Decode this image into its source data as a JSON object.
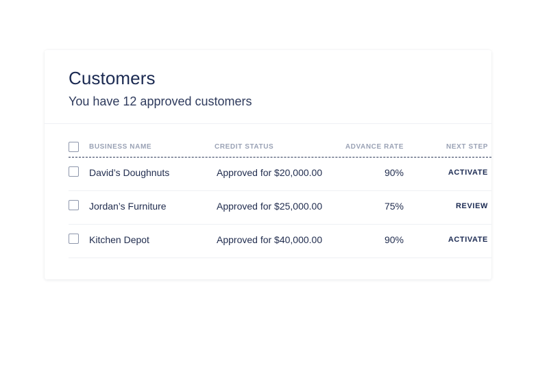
{
  "header": {
    "title": "Customers",
    "subtitle": "You have 12 approved customers"
  },
  "table": {
    "columns": [
      "BUSINESS NAME",
      "CREDIT STATUS",
      "ADVANCE RATE",
      "NEXT STEP"
    ],
    "rows": [
      {
        "name": "David’s Doughnuts",
        "status": "Approved for $20,000.00",
        "rate": "90%",
        "action": "ACTIVATE"
      },
      {
        "name": "Jordan’s Furniture",
        "status": "Approved for $25,000.00",
        "rate": "75%",
        "action": "REVIEW"
      },
      {
        "name": "Kitchen Depot",
        "status": "Approved for $40,000.00",
        "rate": "90%",
        "action": "ACTIVATE"
      }
    ]
  }
}
